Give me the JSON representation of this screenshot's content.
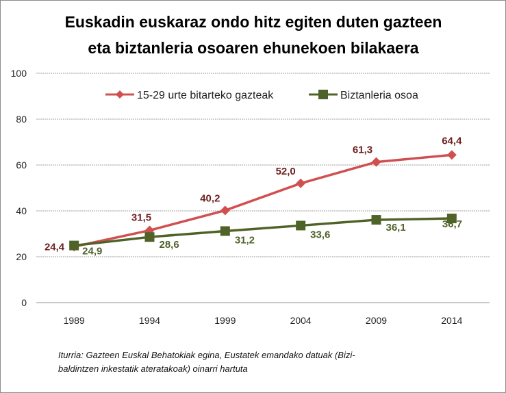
{
  "chart_data": {
    "type": "line",
    "title_lines": [
      "Euskadin euskaraz ondo hitz egiten duten gazteen",
      "eta biztanleria osoaren ehunekoen bilakaera"
    ],
    "categories": [
      "1989",
      "1994",
      "1999",
      "2004",
      "2009",
      "2014"
    ],
    "series": [
      {
        "name": "15-29 urte bitarteko gazteak",
        "values": [
          24.4,
          31.5,
          40.2,
          52.0,
          61.3,
          64.4
        ],
        "labels": [
          "24,4",
          "31,5",
          "40,2",
          "52,0",
          "61,3",
          "64,4"
        ],
        "color": "#d05050",
        "label_color": "#6e1f1f",
        "marker": "diamond"
      },
      {
        "name": "Biztanleria osoa",
        "values": [
          24.9,
          28.6,
          31.2,
          33.6,
          36.1,
          36.7
        ],
        "labels": [
          "24,9",
          "28,6",
          "31,2",
          "33,6",
          "36,1",
          "36,7"
        ],
        "color": "#4f6228",
        "label_color": "#4f6228",
        "marker": "square"
      }
    ],
    "yticks": [
      "0",
      "20",
      "40",
      "60",
      "80",
      "100"
    ],
    "ytick_values": [
      0,
      20,
      40,
      60,
      80,
      100
    ],
    "ylim": [
      0,
      100
    ],
    "xlabel": "",
    "ylabel": "",
    "grid": true,
    "legend_position": "top",
    "source_lines": [
      "Iturria: Gazteen Euskal Behatokiak egina, Eustatek emandako datuak (Bizi-",
      "baldintzen inkestatik ateratakoak) oinarri hartuta"
    ]
  }
}
